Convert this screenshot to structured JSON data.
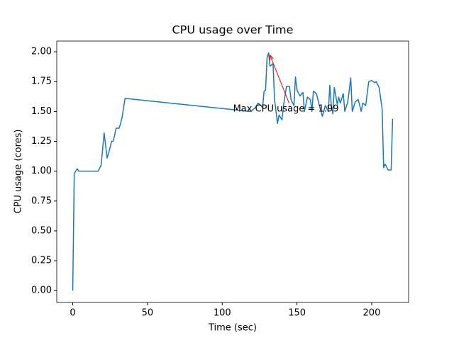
{
  "chart_data": {
    "type": "line",
    "title": "CPU usage over Time",
    "xlabel": "Time (sec)",
    "ylabel": "CPU usage (cores)",
    "xlim": [
      -10.7,
      224.7
    ],
    "ylim": [
      -0.0995,
      2.0895
    ],
    "xticks": [
      0,
      50,
      100,
      150,
      200
    ],
    "yticks": [
      {
        "value": 0,
        "label": "0.00"
      },
      {
        "value": 0.25,
        "label": "0.25"
      },
      {
        "value": 0.5,
        "label": "0.50"
      },
      {
        "value": 0.75,
        "label": "0.75"
      },
      {
        "value": 1,
        "label": "1.00"
      },
      {
        "value": 1.25,
        "label": "1.25"
      },
      {
        "value": 1.5,
        "label": "1.50"
      },
      {
        "value": 1.75,
        "label": "1.75"
      },
      {
        "value": 2,
        "label": "2.00"
      }
    ],
    "series": [
      {
        "color": "#1f77b4",
        "x": [
          0,
          1,
          3,
          4,
          10,
          14,
          17,
          19,
          21,
          23,
          24,
          26,
          27,
          28,
          29,
          31,
          32,
          33,
          35,
          119,
          122,
          124,
          126,
          127,
          128,
          129,
          130,
          131,
          132,
          134,
          135,
          137,
          138,
          140,
          141,
          143,
          145,
          146,
          148,
          149,
          150,
          152,
          154,
          155,
          157,
          159,
          160,
          161,
          163,
          165,
          167,
          169,
          171,
          172,
          173,
          174,
          175,
          177,
          178,
          179,
          181,
          182,
          184,
          186,
          187,
          189,
          191,
          193,
          194,
          196,
          198,
          200,
          202,
          203,
          205,
          207,
          208,
          209,
          211,
          213,
          214
        ],
        "values": [
          0,
          0.98,
          1.02,
          1.0,
          1.0,
          1.0,
          1.0,
          1.05,
          1.32,
          1.11,
          1.15,
          1.25,
          1.25,
          1.3,
          1.36,
          1.36,
          1.4,
          1.45,
          1.61,
          1.5,
          1.53,
          1.57,
          1.55,
          1.53,
          1.67,
          1.68,
          1.95,
          1.99,
          1.88,
          1.9,
          1.6,
          1.4,
          1.47,
          1.43,
          1.55,
          1.71,
          1.71,
          1.6,
          1.55,
          1.79,
          1.68,
          1.63,
          1.66,
          1.5,
          1.62,
          1.6,
          1.5,
          1.67,
          1.65,
          1.55,
          1.46,
          1.55,
          1.5,
          1.72,
          1.55,
          1.48,
          1.7,
          1.56,
          1.62,
          1.57,
          1.65,
          1.5,
          1.58,
          1.78,
          1.5,
          1.58,
          1.6,
          1.5,
          1.57,
          1.55,
          1.75,
          1.76,
          1.74,
          1.75,
          1.7,
          1.52,
          1.03,
          1.06,
          1.01,
          1.01,
          1.44
        ]
      }
    ],
    "annotation": {
      "text": "Max CPU usage = 1.99",
      "x": 131,
      "y": 1.99,
      "color": "#ff0000"
    }
  }
}
